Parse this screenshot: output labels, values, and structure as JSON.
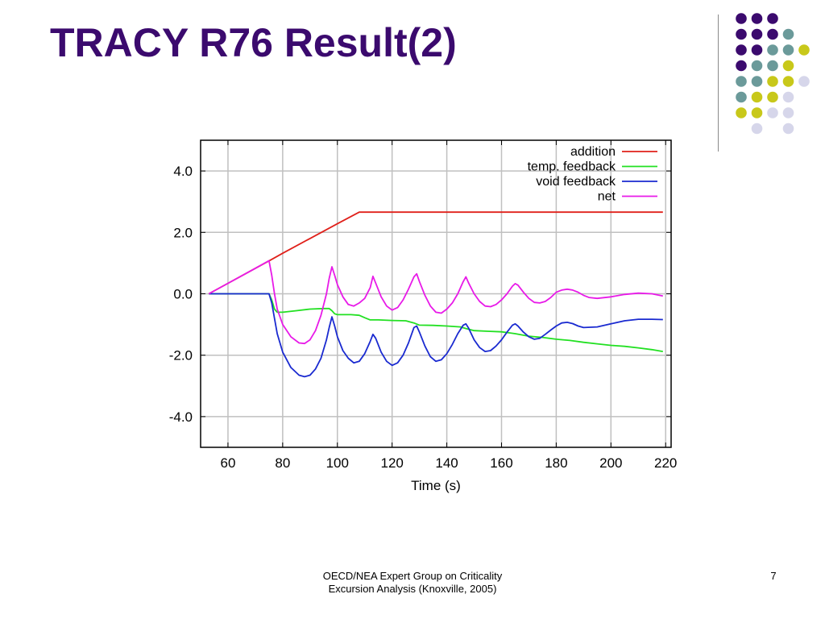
{
  "slide": {
    "title": "TRACY R76 Result(2)",
    "footer_line1": "OECD/NEA Expert Group on Criticality",
    "footer_line2": "Excursion Analysis (Knoxville, 2005)",
    "page_number": "7"
  },
  "decoration": {
    "colors": {
      "purple": "#3b0a6e",
      "teal": "#6b9a9a",
      "yellow": "#c8c81a",
      "lavender": "#d6d6ea"
    },
    "dot_grid": [
      [
        "purple",
        "purple",
        "purple",
        null,
        null
      ],
      [
        "purple",
        "purple",
        "purple",
        "teal",
        null
      ],
      [
        "purple",
        "purple",
        "teal",
        "teal",
        "yellow"
      ],
      [
        "purple",
        "teal",
        "teal",
        "yellow",
        null
      ],
      [
        "teal",
        "teal",
        "yellow",
        "yellow",
        "lavender"
      ],
      [
        "teal",
        "yellow",
        "yellow",
        "lavender",
        null
      ],
      [
        "yellow",
        "yellow",
        "lavender",
        "lavender",
        null
      ],
      [
        null,
        "lavender",
        null,
        "lavender",
        null
      ]
    ]
  },
  "chart_data": {
    "type": "line",
    "xlabel": "Time (s)",
    "ylabel": "",
    "xlim": [
      50,
      222
    ],
    "ylim": [
      -5.0,
      5.0
    ],
    "xticks": [
      60,
      80,
      100,
      120,
      140,
      160,
      180,
      200,
      220
    ],
    "yticks": [
      4.0,
      2.0,
      0.0,
      -2.0,
      -4.0
    ],
    "ytick_labels": [
      "4.0",
      "2.0",
      "0.0",
      "-2.0",
      "-4.0"
    ],
    "grid": true,
    "legend_position": "top-right",
    "series": [
      {
        "name": "addition",
        "color": "#e0201a",
        "x": [
          53,
          60,
          70,
          76,
          80,
          90,
          100,
          108,
          120,
          140,
          160,
          180,
          200,
          219
        ],
        "y": [
          0,
          0.34,
          0.83,
          1.12,
          1.32,
          1.8,
          2.28,
          2.66,
          2.66,
          2.66,
          2.66,
          2.66,
          2.66,
          2.66
        ]
      },
      {
        "name": "temp. feedback",
        "color": "#22e022",
        "x": [
          53,
          75,
          76,
          77,
          78,
          80,
          85,
          90,
          95,
          97,
          98,
          99,
          100,
          105,
          108,
          110,
          112,
          115,
          120,
          125,
          128,
          130,
          135,
          140,
          145,
          147,
          150,
          155,
          160,
          165,
          170,
          175,
          180,
          185,
          190,
          195,
          200,
          205,
          210,
          215,
          219
        ],
        "y": [
          0,
          0,
          -0.2,
          -0.5,
          -0.6,
          -0.6,
          -0.55,
          -0.5,
          -0.48,
          -0.48,
          -0.55,
          -0.65,
          -0.68,
          -0.68,
          -0.7,
          -0.78,
          -0.85,
          -0.85,
          -0.87,
          -0.88,
          -0.95,
          -1.02,
          -1.03,
          -1.05,
          -1.08,
          -1.13,
          -1.2,
          -1.22,
          -1.24,
          -1.3,
          -1.38,
          -1.42,
          -1.48,
          -1.52,
          -1.58,
          -1.63,
          -1.68,
          -1.71,
          -1.76,
          -1.82,
          -1.88
        ]
      },
      {
        "name": "void  feedback",
        "color": "#1a2ad0",
        "x": [
          53,
          75,
          76,
          77,
          78,
          80,
          83,
          86,
          88,
          90,
          92,
          94,
          96,
          97,
          98,
          99,
          100,
          102,
          104,
          106,
          108,
          110,
          112,
          113,
          114,
          116,
          118,
          120,
          122,
          124,
          126,
          128,
          129,
          130,
          132,
          134,
          136,
          138,
          140,
          142,
          144,
          146,
          147,
          148,
          150,
          152,
          154,
          156,
          158,
          160,
          162,
          164,
          165,
          166,
          168,
          170,
          172,
          174,
          176,
          178,
          180,
          182,
          184,
          186,
          188,
          190,
          195,
          200,
          205,
          210,
          215,
          219
        ],
        "y": [
          0,
          0,
          -0.3,
          -0.8,
          -1.3,
          -1.9,
          -2.4,
          -2.65,
          -2.7,
          -2.65,
          -2.45,
          -2.1,
          -1.5,
          -1.1,
          -0.75,
          -1.05,
          -1.4,
          -1.85,
          -2.1,
          -2.25,
          -2.2,
          -1.95,
          -1.55,
          -1.32,
          -1.45,
          -1.9,
          -2.2,
          -2.33,
          -2.25,
          -2.0,
          -1.6,
          -1.1,
          -1.05,
          -1.25,
          -1.7,
          -2.05,
          -2.2,
          -2.15,
          -1.95,
          -1.65,
          -1.3,
          -1.02,
          -0.98,
          -1.12,
          -1.5,
          -1.75,
          -1.88,
          -1.85,
          -1.7,
          -1.5,
          -1.25,
          -1.02,
          -0.98,
          -1.05,
          -1.25,
          -1.4,
          -1.48,
          -1.45,
          -1.32,
          -1.18,
          -1.05,
          -0.95,
          -0.93,
          -0.97,
          -1.05,
          -1.1,
          -1.08,
          -0.98,
          -0.88,
          -0.83,
          -0.83,
          -0.84
        ]
      },
      {
        "name": "net",
        "color": "#e81ae8",
        "x": [
          53,
          60,
          70,
          75,
          76,
          77,
          78,
          80,
          83,
          86,
          88,
          90,
          92,
          94,
          96,
          97,
          98,
          99,
          100,
          102,
          104,
          106,
          108,
          110,
          112,
          113,
          114,
          116,
          118,
          120,
          122,
          124,
          126,
          128,
          129,
          130,
          132,
          134,
          136,
          138,
          140,
          142,
          144,
          146,
          147,
          148,
          150,
          152,
          154,
          156,
          158,
          160,
          162,
          164,
          165,
          166,
          168,
          170,
          172,
          174,
          176,
          178,
          180,
          182,
          184,
          186,
          188,
          190,
          192,
          195,
          200,
          205,
          210,
          215,
          219
        ],
        "y": [
          0,
          0.34,
          0.83,
          1.08,
          0.6,
          0.0,
          -0.5,
          -1.0,
          -1.4,
          -1.6,
          -1.62,
          -1.5,
          -1.2,
          -0.7,
          0.0,
          0.5,
          0.88,
          0.6,
          0.3,
          -0.1,
          -0.35,
          -0.4,
          -0.3,
          -0.15,
          0.2,
          0.57,
          0.35,
          -0.1,
          -0.4,
          -0.53,
          -0.45,
          -0.2,
          0.15,
          0.55,
          0.65,
          0.4,
          -0.05,
          -0.4,
          -0.6,
          -0.63,
          -0.5,
          -0.3,
          0.0,
          0.4,
          0.55,
          0.35,
          0.0,
          -0.25,
          -0.4,
          -0.42,
          -0.35,
          -0.2,
          0.0,
          0.25,
          0.33,
          0.28,
          0.05,
          -0.15,
          -0.28,
          -0.3,
          -0.25,
          -0.12,
          0.05,
          0.12,
          0.15,
          0.12,
          0.05,
          -0.05,
          -0.12,
          -0.15,
          -0.1,
          -0.02,
          0.02,
          0.0,
          -0.07
        ]
      }
    ]
  }
}
